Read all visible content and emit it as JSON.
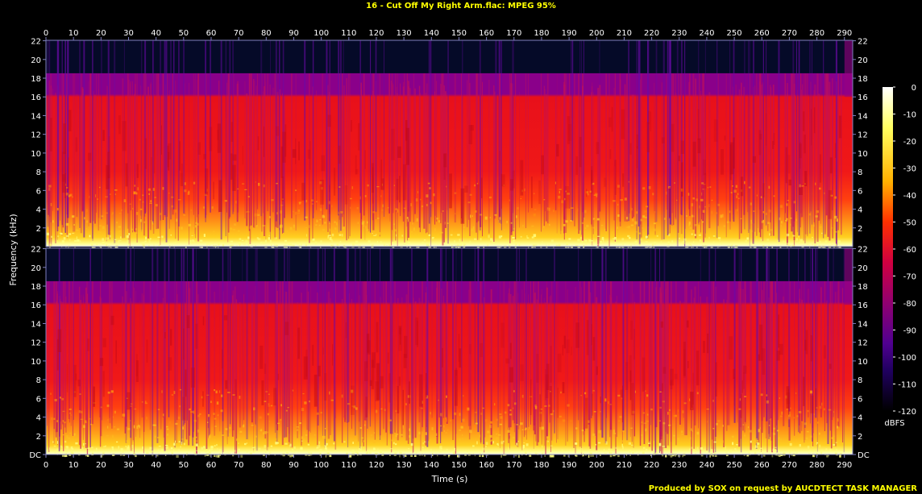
{
  "title": "16 - Cut Off My Right Arm.flac: MPEG 95%",
  "credit": "Produced by SOX on request by AUCDTECT TASK MANAGER",
  "chart_data": {
    "type": "heatmap",
    "title": "16 - Cut Off My Right Arm.flac: MPEG 95%",
    "xlabel": "Time (s)",
    "ylabel": "Frequency (kHz)",
    "xlim": [
      0,
      293
    ],
    "ylim": [
      0,
      22.05
    ],
    "x_ticks": [
      0,
      10,
      20,
      30,
      40,
      50,
      60,
      70,
      80,
      90,
      100,
      110,
      120,
      130,
      140,
      150,
      160,
      170,
      180,
      190,
      200,
      210,
      220,
      230,
      240,
      250,
      260,
      270,
      280,
      290
    ],
    "y_ticks": [
      {
        "value": 0,
        "label": "DC"
      },
      {
        "value": 2,
        "label": "2"
      },
      {
        "value": 4,
        "label": "4"
      },
      {
        "value": 6,
        "label": "6"
      },
      {
        "value": 8,
        "label": "8"
      },
      {
        "value": 10,
        "label": "10"
      },
      {
        "value": 12,
        "label": "12"
      },
      {
        "value": 14,
        "label": "14"
      },
      {
        "value": 16,
        "label": "16"
      },
      {
        "value": 18,
        "label": "18"
      },
      {
        "value": 20,
        "label": "20"
      },
      {
        "value": 22,
        "label": "22"
      }
    ],
    "channels": 2,
    "lowpass_cutoff_khz": 16,
    "upper_band_top_khz": 18.5,
    "colorbar": {
      "label": "dBFS",
      "range": [
        -120,
        0
      ],
      "ticks": [
        0,
        -10,
        -20,
        -30,
        -40,
        -50,
        -60,
        -70,
        -80,
        -90,
        -100,
        -110,
        -120
      ],
      "stops": [
        {
          "db": 0,
          "color": "#ffffff"
        },
        {
          "db": -15,
          "color": "#ffff60"
        },
        {
          "db": -35,
          "color": "#ffb000"
        },
        {
          "db": -50,
          "color": "#ff3000"
        },
        {
          "db": -65,
          "color": "#d00040"
        },
        {
          "db": -80,
          "color": "#900070"
        },
        {
          "db": -95,
          "color": "#500090"
        },
        {
          "db": -105,
          "color": "#200060"
        },
        {
          "db": -120,
          "color": "#000000"
        }
      ]
    },
    "colors": {
      "top_band_background": "#050a28",
      "purple_band": "#8a008a",
      "red_band": "#e8101a",
      "low_yellow": "#ffd020",
      "axis_line": "#8080c0"
    }
  }
}
